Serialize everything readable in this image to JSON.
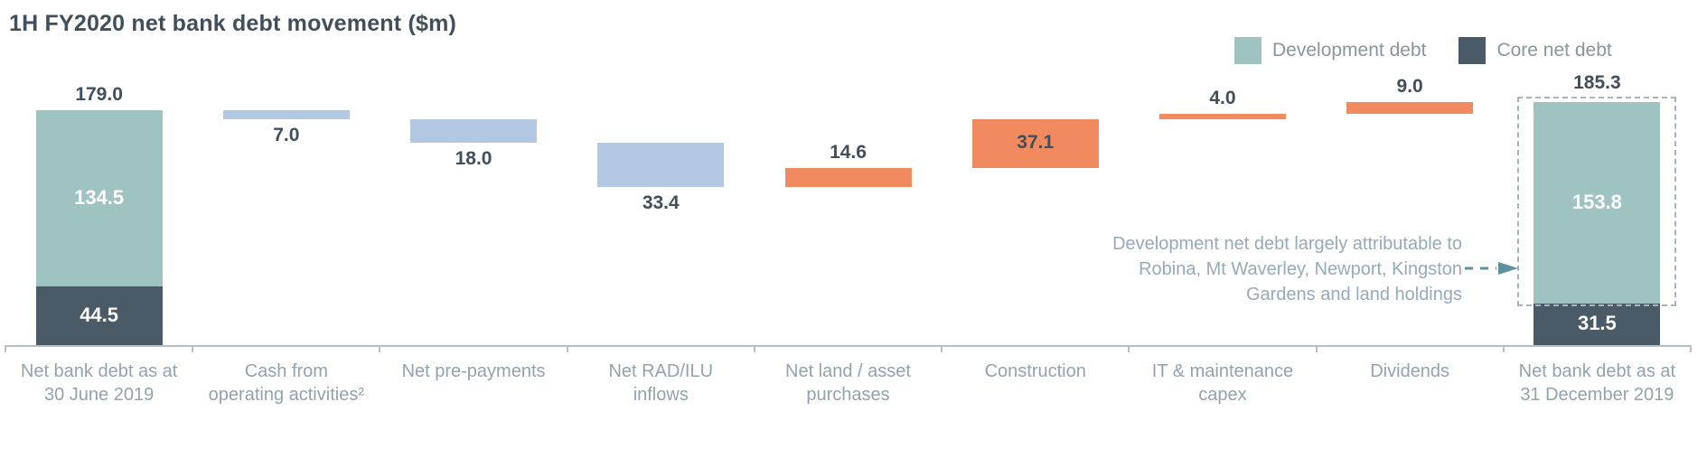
{
  "title": "1H FY2020 net bank debt movement ($m)",
  "legend": {
    "items": [
      {
        "label": "Development debt",
        "color_key": "development_debt"
      },
      {
        "label": "Core net debt",
        "color_key": "core_net_debt"
      }
    ]
  },
  "annotation": {
    "text": "Development net debt largely attributable to\nRobina, Mt Waverley, Newport, Kingston\nGardens and land holdings",
    "arrow_icon": "dashed-right-arrow"
  },
  "colors": {
    "development_debt": "#9ec3c1",
    "core_net_debt": "#4b5a67",
    "decrease": "#b3c8e3",
    "increase": "#f18a5f",
    "title_text": "#414e5b",
    "value_text": "#414e5b",
    "segment_value_text": "#ffffff",
    "axis_text": "#94a2ae",
    "axis_line": "#b6bfc6",
    "annotation_text": "#95abb8",
    "arrow": "#5d91a2",
    "highlight_border": "#a9b5bd"
  },
  "chart_data": {
    "type": "bar",
    "subtype": "waterfall",
    "title": "1H FY2020 net bank debt movement ($m)",
    "unit": "$m",
    "y_axis": {
      "min": 0,
      "max": 185.3,
      "shown": false,
      "gridlines": false
    },
    "legend_position": "top-right",
    "categories": [
      "Net bank debt as at 30 June 2019",
      "Cash from operating activities²",
      "Net pre-payments",
      "Net RAD/ILU inflows",
      "Net land / asset purchases",
      "Construction",
      "IT & maintenance capex",
      "Dividends",
      "Net bank debt as at 31 December 2019"
    ],
    "steps": [
      {
        "label": "Net bank debt as at\n30 June 2019",
        "type": "total",
        "value": 179.0,
        "value_label": "179.0",
        "segments": [
          {
            "name": "Development debt",
            "color_key": "development_debt",
            "value": 134.5,
            "value_label": "134.5"
          },
          {
            "name": "Core net debt",
            "color_key": "core_net_debt",
            "value": 44.5,
            "value_label": "44.5"
          }
        ]
      },
      {
        "label": "Cash from\noperating activities²",
        "type": "decrease",
        "value": 7.0,
        "value_label": "7.0",
        "label_pos": "below"
      },
      {
        "label": "Net pre-payments",
        "type": "decrease",
        "value": 18.0,
        "value_label": "18.0",
        "label_pos": "below"
      },
      {
        "label": "Net RAD/ILU\ninflows",
        "type": "decrease",
        "value": 33.4,
        "value_label": "33.4",
        "label_pos": "below"
      },
      {
        "label": "Net land / asset\npurchases",
        "type": "increase",
        "value": 14.6,
        "value_label": "14.6",
        "label_pos": "above"
      },
      {
        "label": "Construction",
        "type": "increase",
        "value": 37.1,
        "value_label": "37.1",
        "label_pos": "inside"
      },
      {
        "label": "IT & maintenance\ncapex",
        "type": "increase",
        "value": 4.0,
        "value_label": "4.0",
        "label_pos": "above"
      },
      {
        "label": "Dividends",
        "type": "increase",
        "value": 9.0,
        "value_label": "9.0",
        "label_pos": "above"
      },
      {
        "label": "Net bank debt as at\n31 December 2019",
        "type": "total",
        "value": 185.3,
        "value_label": "185.3",
        "highlight_box": true,
        "segments": [
          {
            "name": "Development debt",
            "color_key": "development_debt",
            "value": 153.8,
            "value_label": "153.8"
          },
          {
            "name": "Core net debt",
            "color_key": "core_net_debt",
            "value": 31.5,
            "value_label": "31.5"
          }
        ]
      }
    ]
  }
}
